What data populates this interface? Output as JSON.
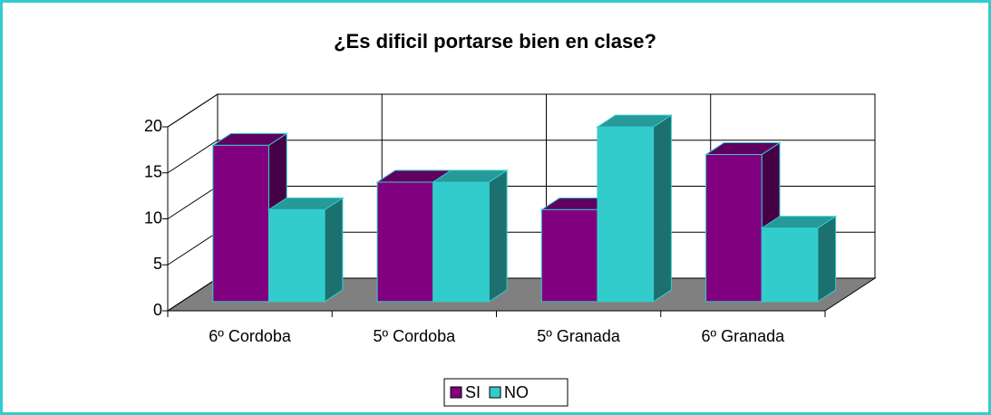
{
  "chart_data": {
    "type": "bar3d",
    "title": "¿Es dificil portarse bien en clase?",
    "categories": [
      "6º Cordoba",
      "5º Cordoba",
      "5º Granada",
      "6º Granada"
    ],
    "series": [
      {
        "name": "SI",
        "color": "#800080",
        "values": [
          17,
          13,
          10,
          16
        ]
      },
      {
        "name": "NO",
        "color": "#33cccc",
        "values": [
          10,
          13,
          19,
          8
        ]
      }
    ],
    "ylim": [
      0,
      20
    ],
    "yticks": [
      0,
      5,
      10,
      15,
      20
    ],
    "grid": true,
    "legend": "bottom"
  }
}
